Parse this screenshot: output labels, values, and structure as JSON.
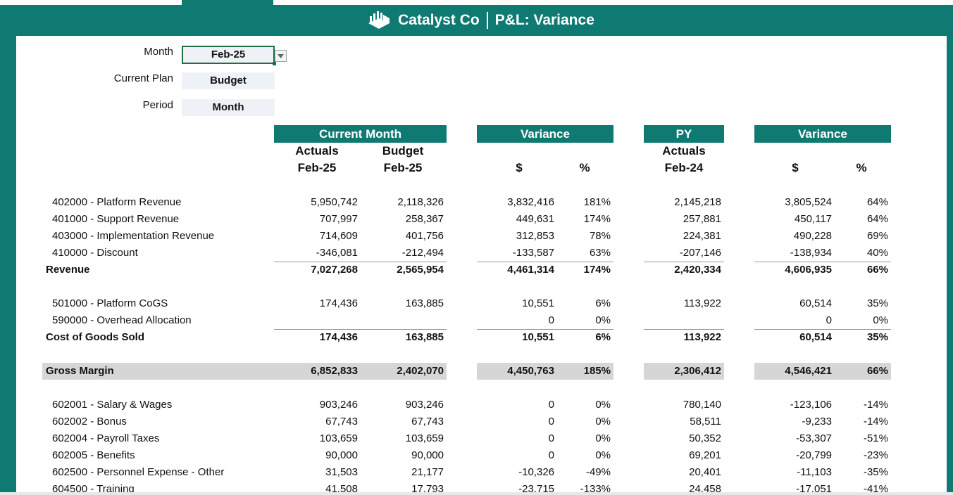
{
  "title": {
    "company": "Catalyst Co",
    "report": "P&L: Variance"
  },
  "controls": {
    "month_label": "Month",
    "month_value": "Feb-25",
    "plan_label": "Current Plan",
    "plan_value": "Budget",
    "period_label": "Period",
    "period_value": "Month"
  },
  "headers": {
    "current_month": "Current Month",
    "variance1": "Variance",
    "py": "PY",
    "variance2": "Variance",
    "actuals": "Actuals",
    "budget": "Budget",
    "actuals_period": "Feb-25",
    "budget_period": "Feb-25",
    "dollar": "$",
    "pct": "%",
    "py_actuals": "Actuals",
    "py_period": "Feb-24",
    "dollar2": "$",
    "pct2": "%"
  },
  "rows": [
    {
      "type": "sub",
      "label": "402000 - Platform Revenue",
      "act": "5,950,742",
      "bud": "2,118,326",
      "vd": "3,832,416",
      "vp": "181%",
      "py": "2,145,218",
      "pd": "3,805,524",
      "pp": "64%"
    },
    {
      "type": "sub",
      "label": "401000 - Support Revenue",
      "act": "707,997",
      "bud": "258,367",
      "vd": "449,631",
      "vp": "174%",
      "py": "257,881",
      "pd": "450,117",
      "pp": "64%"
    },
    {
      "type": "sub",
      "label": "403000 - Implementation Revenue",
      "act": "714,609",
      "bud": "401,756",
      "vd": "312,853",
      "vp": "78%",
      "py": "224,381",
      "pd": "490,228",
      "pp": "69%"
    },
    {
      "type": "sub",
      "label": "410000 - Discount",
      "act": "-346,081",
      "bud": "-212,494",
      "vd": "-133,587",
      "vp": "63%",
      "py": "-207,146",
      "pd": "-138,934",
      "pp": "40%"
    },
    {
      "type": "total",
      "label": "Revenue",
      "act": "7,027,268",
      "bud": "2,565,954",
      "vd": "4,461,314",
      "vp": "174%",
      "py": "2,420,334",
      "pd": "4,606,935",
      "pp": "66%"
    },
    {
      "type": "sub",
      "label": "501000 - Platform CoGS",
      "act": "174,436",
      "bud": "163,885",
      "vd": "10,551",
      "vp": "6%",
      "py": "113,922",
      "pd": "60,514",
      "pp": "35%"
    },
    {
      "type": "sub",
      "label": "590000 - Overhead Allocation",
      "act": "",
      "bud": "",
      "vd": "0",
      "vp": "0%",
      "py": "",
      "pd": "0",
      "pp": "0%"
    },
    {
      "type": "total",
      "label": "Cost of Goods Sold",
      "act": "174,436",
      "bud": "163,885",
      "vd": "10,551",
      "vp": "6%",
      "py": "113,922",
      "pd": "60,514",
      "pp": "35%"
    },
    {
      "type": "gm",
      "label": "Gross Margin",
      "act": "6,852,833",
      "bud": "2,402,070",
      "vd": "4,450,763",
      "vp": "185%",
      "py": "2,306,412",
      "pd": "4,546,421",
      "pp": "66%"
    },
    {
      "type": "sub",
      "label": "602001 - Salary & Wages",
      "act": "903,246",
      "bud": "903,246",
      "vd": "0",
      "vp": "0%",
      "py": "780,140",
      "pd": "-123,106",
      "pp": "-14%"
    },
    {
      "type": "sub",
      "label": "602002 - Bonus",
      "act": "67,743",
      "bud": "67,743",
      "vd": "0",
      "vp": "0%",
      "py": "58,511",
      "pd": "-9,233",
      "pp": "-14%"
    },
    {
      "type": "sub",
      "label": "602004 - Payroll Taxes",
      "act": "103,659",
      "bud": "103,659",
      "vd": "0",
      "vp": "0%",
      "py": "50,352",
      "pd": "-53,307",
      "pp": "-51%"
    },
    {
      "type": "sub",
      "label": "602005 - Benefits",
      "act": "90,000",
      "bud": "90,000",
      "vd": "0",
      "vp": "0%",
      "py": "69,201",
      "pd": "-20,799",
      "pp": "-23%"
    },
    {
      "type": "sub",
      "label": "602500 - Personnel Expense - Other",
      "act": "31,503",
      "bud": "21,177",
      "vd": "-10,326",
      "vp": "-49%",
      "py": "20,401",
      "pd": "-11,103",
      "pp": "-35%"
    },
    {
      "type": "sub",
      "label": "604500 - Training",
      "act": "41,508",
      "bud": "17,793",
      "vd": "-23,715",
      "vp": "-133%",
      "py": "24,458",
      "pd": "-17,051",
      "pp": "-41%"
    }
  ]
}
